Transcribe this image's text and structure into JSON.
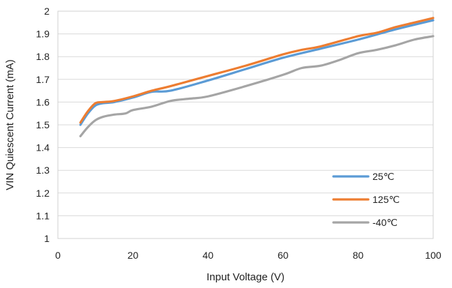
{
  "chart_data": {
    "type": "line",
    "xlabel": "Input Voltage (V)",
    "ylabel": "VIN Quiescent Current (mA)",
    "xlim": [
      0,
      100
    ],
    "ylim": [
      1,
      2
    ],
    "xticks": [
      0,
      20,
      40,
      60,
      80,
      100
    ],
    "yticks": [
      1,
      1.1,
      1.2,
      1.3,
      1.4,
      1.5,
      1.6,
      1.7,
      1.8,
      1.9,
      2
    ],
    "grid": "horizontal",
    "legend_position": "lower-right",
    "series": [
      {
        "name": "25℃",
        "color": "#5B9BD5",
        "x": [
          6,
          8,
          10,
          12,
          15,
          20,
          25,
          30,
          40,
          50,
          60,
          70,
          80,
          90,
          100
        ],
        "y": [
          1.5,
          1.55,
          1.585,
          1.595,
          1.6,
          1.62,
          1.645,
          1.65,
          1.695,
          1.745,
          1.795,
          1.835,
          1.875,
          1.92,
          1.96
        ]
      },
      {
        "name": "125℃",
        "color": "#ED7D31",
        "x": [
          6,
          8,
          10,
          12,
          15,
          20,
          25,
          30,
          40,
          50,
          60,
          65,
          70,
          80,
          85,
          90,
          95,
          100
        ],
        "y": [
          1.51,
          1.56,
          1.595,
          1.6,
          1.605,
          1.625,
          1.65,
          1.67,
          1.715,
          1.76,
          1.81,
          1.83,
          1.845,
          1.89,
          1.905,
          1.93,
          1.95,
          1.97
        ]
      },
      {
        "name": "-40℃",
        "color": "#A5A5A5",
        "x": [
          6,
          8,
          10,
          12,
          15,
          18,
          20,
          25,
          30,
          35,
          40,
          50,
          60,
          65,
          70,
          75,
          80,
          85,
          90,
          95,
          100
        ],
        "y": [
          1.45,
          1.49,
          1.52,
          1.535,
          1.545,
          1.55,
          1.565,
          1.58,
          1.605,
          1.615,
          1.625,
          1.67,
          1.72,
          1.75,
          1.76,
          1.785,
          1.815,
          1.83,
          1.85,
          1.875,
          1.89
        ]
      }
    ]
  }
}
